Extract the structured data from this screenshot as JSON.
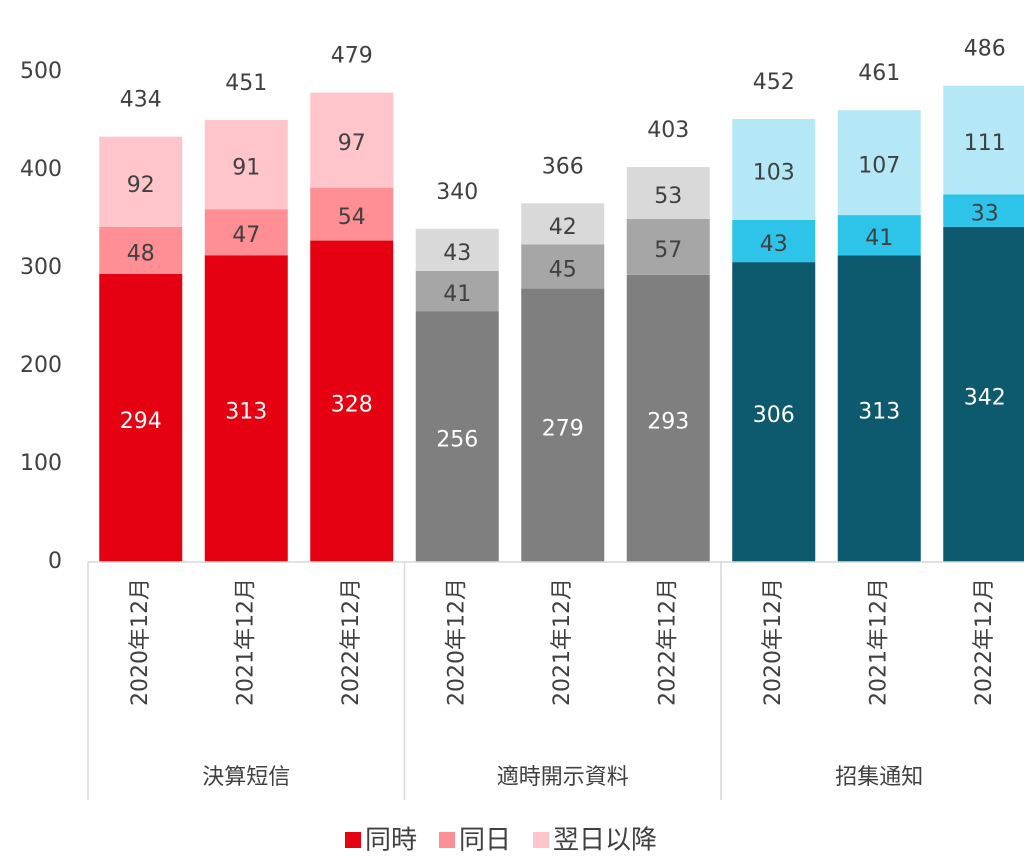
{
  "chart_data": {
    "type": "stacked-bar",
    "groups": [
      {
        "name": "決算短信",
        "categories": [
          "2020年12月",
          "2021年12月",
          "2022年12月"
        ]
      },
      {
        "name": "適時開示資料",
        "categories": [
          "2020年12月",
          "2021年12月",
          "2022年12月"
        ]
      },
      {
        "name": "招集通知",
        "categories": [
          "2020年12月",
          "2021年12月",
          "2022年12月"
        ]
      }
    ],
    "series": [
      {
        "name": "同時",
        "colors": [
          "#e50012",
          "#7f7f7f",
          "#0d5a6e"
        ],
        "values": [
          294,
          313,
          328,
          256,
          279,
          293,
          306,
          313,
          342
        ]
      },
      {
        "name": "同日",
        "colors": [
          "#ff8f94",
          "#a6a6a6",
          "#2ec4ea"
        ],
        "values": [
          48,
          47,
          54,
          41,
          45,
          57,
          43,
          41,
          33
        ]
      },
      {
        "name": "翌日以降",
        "colors": [
          "#ffc5cb",
          "#d9d9d9",
          "#b5e8f6"
        ],
        "values": [
          92,
          91,
          97,
          43,
          42,
          53,
          103,
          107,
          111
        ]
      }
    ],
    "totals": [
      434,
      451,
      479,
      340,
      366,
      403,
      452,
      461,
      486
    ],
    "ylim": [
      0,
      500
    ],
    "yticks": [
      0,
      100,
      200,
      300,
      400,
      500
    ],
    "legend": "bottom"
  }
}
